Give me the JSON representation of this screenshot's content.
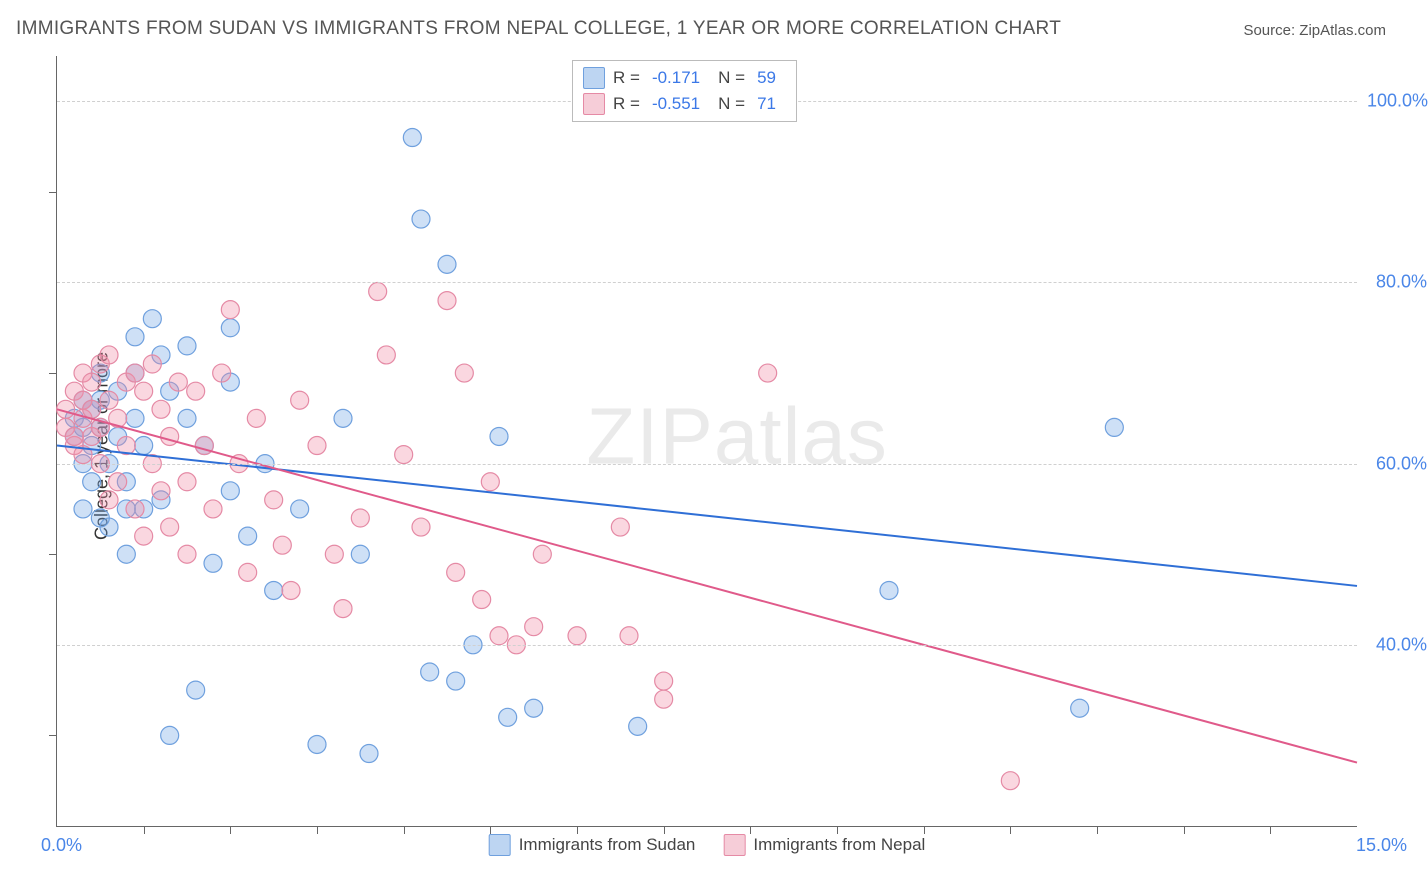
{
  "title": "IMMIGRANTS FROM SUDAN VS IMMIGRANTS FROM NEPAL COLLEGE, 1 YEAR OR MORE CORRELATION CHART",
  "source": "Source: ZipAtlas.com",
  "ylabel": "College, 1 year or more",
  "watermark": "ZIPatlas",
  "chart": {
    "type": "scatter",
    "xlim": [
      0,
      15
    ],
    "ylim": [
      20,
      105
    ],
    "x_tick_left": "0.0%",
    "x_tick_right": "15.0%",
    "x_minor_ticks": [
      1,
      2,
      3,
      4,
      5,
      6,
      7,
      8,
      9,
      10,
      11,
      12,
      13,
      14
    ],
    "y_minor_ticks": [
      30,
      50,
      70,
      90
    ],
    "y_gridlines": [
      {
        "v": 40,
        "label": "40.0%"
      },
      {
        "v": 60,
        "label": "60.0%"
      },
      {
        "v": 80,
        "label": "80.0%"
      },
      {
        "v": 100,
        "label": "100.0%"
      }
    ],
    "grid_color": "#d0d0d0",
    "background_color": "#ffffff",
    "series": [
      {
        "name": "Immigrants from Sudan",
        "color_fill": "rgba(116,166,228,0.35)",
        "color_stroke": "#6fa0de",
        "swatch_fill": "#bdd5f2",
        "swatch_border": "#6fa0de",
        "line_color": "#2f6fd6",
        "line_width": 2,
        "marker_radius": 9,
        "R": "-0.171",
        "N": "59",
        "trend": {
          "x1": 0,
          "y1": 62.0,
          "x2": 15,
          "y2": 46.5
        },
        "points": [
          [
            0.2,
            65
          ],
          [
            0.2,
            63
          ],
          [
            0.3,
            67
          ],
          [
            0.3,
            60
          ],
          [
            0.3,
            64
          ],
          [
            0.3,
            55
          ],
          [
            0.4,
            66
          ],
          [
            0.4,
            62
          ],
          [
            0.4,
            58
          ],
          [
            0.5,
            70
          ],
          [
            0.5,
            67
          ],
          [
            0.5,
            64
          ],
          [
            0.5,
            54
          ],
          [
            0.6,
            53
          ],
          [
            0.6,
            60
          ],
          [
            0.7,
            63
          ],
          [
            0.7,
            68
          ],
          [
            0.8,
            58
          ],
          [
            0.8,
            55
          ],
          [
            0.8,
            50
          ],
          [
            0.9,
            70
          ],
          [
            0.9,
            65
          ],
          [
            0.9,
            74
          ],
          [
            1.0,
            62
          ],
          [
            1.0,
            55
          ],
          [
            1.1,
            76
          ],
          [
            1.2,
            72
          ],
          [
            1.2,
            56
          ],
          [
            1.3,
            68
          ],
          [
            1.3,
            30
          ],
          [
            1.5,
            73
          ],
          [
            1.5,
            65
          ],
          [
            1.6,
            35
          ],
          [
            1.7,
            62
          ],
          [
            1.8,
            49
          ],
          [
            2.0,
            57
          ],
          [
            2.0,
            75
          ],
          [
            2.0,
            69
          ],
          [
            2.2,
            52
          ],
          [
            2.4,
            60
          ],
          [
            2.5,
            46
          ],
          [
            2.8,
            55
          ],
          [
            3.0,
            29
          ],
          [
            3.3,
            65
          ],
          [
            3.5,
            50
          ],
          [
            3.6,
            28
          ],
          [
            4.1,
            96
          ],
          [
            4.2,
            87
          ],
          [
            4.3,
            37
          ],
          [
            4.5,
            82
          ],
          [
            4.6,
            36
          ],
          [
            4.8,
            40
          ],
          [
            5.1,
            63
          ],
          [
            5.2,
            32
          ],
          [
            5.5,
            33
          ],
          [
            6.7,
            31
          ],
          [
            9.6,
            46
          ],
          [
            12.2,
            64
          ],
          [
            11.8,
            33
          ]
        ]
      },
      {
        "name": "Immigrants from Nepal",
        "color_fill": "rgba(240,140,165,0.35)",
        "color_stroke": "#e58aa5",
        "swatch_fill": "#f6cdd8",
        "swatch_border": "#e58aa5",
        "line_color": "#e05a8a",
        "line_width": 2,
        "marker_radius": 9,
        "R": "-0.551",
        "N": "71",
        "trend": {
          "x1": 0,
          "y1": 66.0,
          "x2": 15,
          "y2": 27.0
        },
        "points": [
          [
            0.1,
            64
          ],
          [
            0.1,
            66
          ],
          [
            0.2,
            62
          ],
          [
            0.2,
            68
          ],
          [
            0.2,
            63
          ],
          [
            0.3,
            65
          ],
          [
            0.3,
            67
          ],
          [
            0.3,
            70
          ],
          [
            0.4,
            66
          ],
          [
            0.4,
            63
          ],
          [
            0.4,
            69
          ],
          [
            0.5,
            71
          ],
          [
            0.5,
            64
          ],
          [
            0.5,
            60
          ],
          [
            0.6,
            67
          ],
          [
            0.6,
            72
          ],
          [
            0.7,
            65
          ],
          [
            0.7,
            58
          ],
          [
            0.8,
            69
          ],
          [
            0.8,
            62
          ],
          [
            0.9,
            70
          ],
          [
            0.9,
            55
          ],
          [
            1.0,
            68
          ],
          [
            1.0,
            52
          ],
          [
            1.1,
            71
          ],
          [
            1.1,
            60
          ],
          [
            1.2,
            66
          ],
          [
            1.2,
            57
          ],
          [
            1.3,
            63
          ],
          [
            1.4,
            69
          ],
          [
            1.5,
            58
          ],
          [
            1.5,
            50
          ],
          [
            1.6,
            68
          ],
          [
            1.7,
            62
          ],
          [
            1.8,
            55
          ],
          [
            1.9,
            70
          ],
          [
            2.0,
            77
          ],
          [
            2.1,
            60
          ],
          [
            2.2,
            48
          ],
          [
            2.3,
            65
          ],
          [
            2.5,
            56
          ],
          [
            2.6,
            51
          ],
          [
            2.8,
            67
          ],
          [
            3.0,
            62
          ],
          [
            3.2,
            50
          ],
          [
            3.5,
            54
          ],
          [
            3.7,
            79
          ],
          [
            3.8,
            72
          ],
          [
            4.0,
            61
          ],
          [
            4.2,
            53
          ],
          [
            4.5,
            78
          ],
          [
            4.6,
            48
          ],
          [
            4.7,
            70
          ],
          [
            4.9,
            45
          ],
          [
            5.0,
            58
          ],
          [
            5.1,
            41
          ],
          [
            5.3,
            40
          ],
          [
            5.5,
            42
          ],
          [
            5.6,
            50
          ],
          [
            6.0,
            41
          ],
          [
            6.5,
            53
          ],
          [
            6.6,
            41
          ],
          [
            7.0,
            36
          ],
          [
            7.0,
            34
          ],
          [
            8.2,
            70
          ],
          [
            11.0,
            25
          ],
          [
            0.3,
            61
          ],
          [
            0.6,
            56
          ],
          [
            1.3,
            53
          ],
          [
            2.7,
            46
          ],
          [
            3.3,
            44
          ]
        ]
      }
    ]
  }
}
